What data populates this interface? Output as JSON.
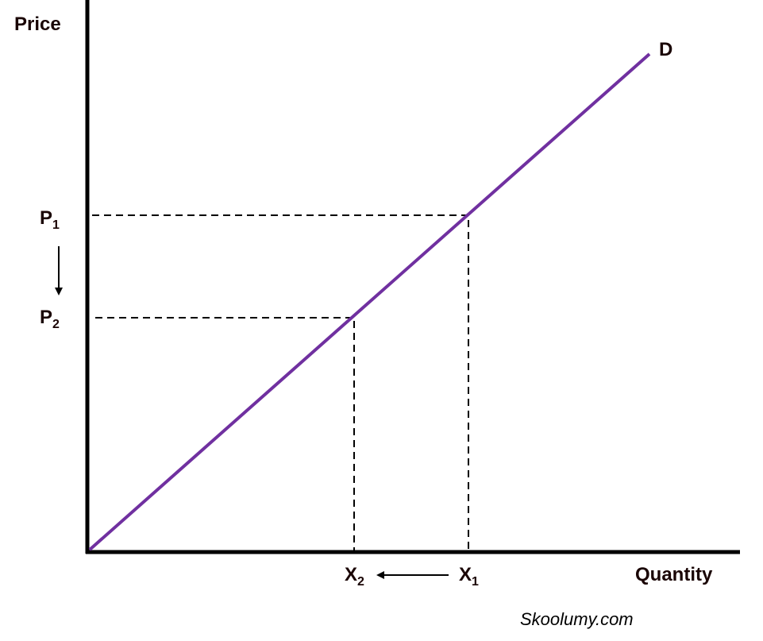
{
  "axes": {
    "y_label": "Price",
    "x_label": "Quantity"
  },
  "curve": {
    "label": "D"
  },
  "prices": [
    {
      "base": "P",
      "sub": "1"
    },
    {
      "base": "P",
      "sub": "2"
    }
  ],
  "quantities": [
    {
      "base": "X",
      "sub": "1"
    },
    {
      "base": "X",
      "sub": "2"
    }
  ],
  "watermark": "Skoolumy.com"
}
